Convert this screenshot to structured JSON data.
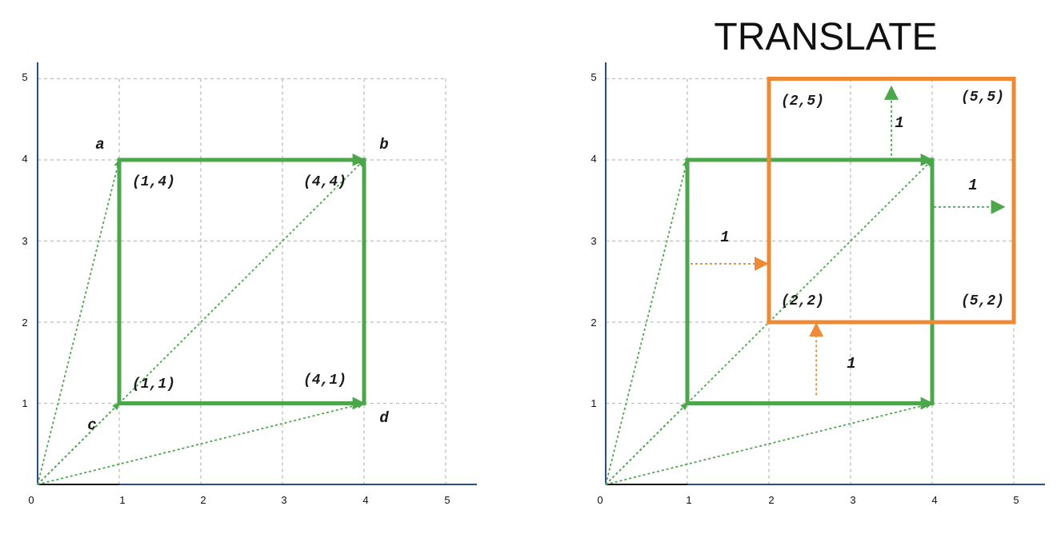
{
  "title": "TRANSLATE",
  "colors": {
    "green": "#4ca64c",
    "orange": "#ee8a35",
    "axis": "#2b4c8c",
    "grid": "#bdbdbd"
  },
  "axis": {
    "origin_label": "0",
    "x_ticks": [
      "1",
      "2",
      "3",
      "4",
      "5"
    ],
    "y_ticks": [
      "1",
      "2",
      "3",
      "4",
      "5"
    ],
    "range": [
      0,
      5
    ]
  },
  "left_panel": {
    "square": [
      [
        1,
        1
      ],
      [
        4,
        1
      ],
      [
        4,
        4
      ],
      [
        1,
        4
      ]
    ],
    "vectors": [
      {
        "name": "a",
        "to": [
          1,
          4
        ]
      },
      {
        "name": "b",
        "to": [
          4,
          4
        ]
      },
      {
        "name": "c",
        "to": [
          1,
          1
        ]
      },
      {
        "name": "d",
        "to": [
          4,
          1
        ]
      }
    ],
    "vector_labels": [
      "a",
      "b",
      "c",
      "d"
    ],
    "point_labels": [
      "(1,4)",
      "(4,4)",
      "(1,1)",
      "(4,1)"
    ]
  },
  "right_panel": {
    "original_square": [
      [
        1,
        1
      ],
      [
        4,
        1
      ],
      [
        4,
        4
      ],
      [
        1,
        4
      ]
    ],
    "translated_square": [
      [
        2,
        2
      ],
      [
        5,
        2
      ],
      [
        5,
        5
      ],
      [
        2,
        5
      ]
    ],
    "translation": [
      1,
      1
    ],
    "point_labels": [
      "(2,5)",
      "(5,5)",
      "(2,2)",
      "(5,2)"
    ],
    "shift_labels": [
      "1",
      "1",
      "1",
      "1"
    ]
  }
}
